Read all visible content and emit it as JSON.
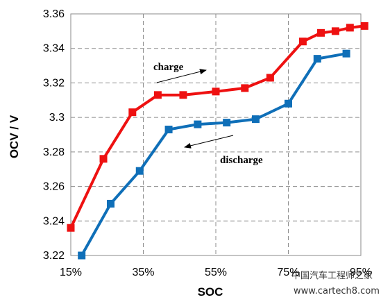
{
  "chart_data": {
    "type": "line",
    "xlabel": "SOC",
    "ylabel": "OCV / V",
    "xlim": [
      15,
      95
    ],
    "ylim": [
      3.22,
      3.36
    ],
    "x_ticks": [
      "15%",
      "35%",
      "55%",
      "75%",
      "95%"
    ],
    "x_tick_values": [
      15,
      35,
      55,
      75,
      95
    ],
    "y_ticks": [
      "3.22",
      "3.24",
      "3.26",
      "3.28",
      "3.3",
      "3.32",
      "3.34",
      "3.36"
    ],
    "y_tick_values": [
      3.22,
      3.24,
      3.26,
      3.28,
      3.3,
      3.32,
      3.34,
      3.36
    ],
    "grid": true,
    "series": [
      {
        "label": "charge",
        "color": "#ee1111",
        "marker": "square",
        "x": [
          15,
          24,
          32,
          39,
          46,
          55,
          63,
          70,
          79,
          84,
          88,
          92,
          96
        ],
        "y": [
          3.236,
          3.276,
          3.303,
          3.313,
          3.313,
          3.315,
          3.317,
          3.323,
          3.344,
          3.349,
          3.35,
          3.352,
          3.353
        ]
      },
      {
        "label": "discharge",
        "color": "#0f6fb8",
        "marker": "square",
        "x": [
          18,
          26,
          34,
          42,
          50,
          58,
          66,
          75,
          83,
          91
        ],
        "y": [
          3.22,
          3.25,
          3.269,
          3.293,
          3.296,
          3.297,
          3.299,
          3.308,
          3.334,
          3.337
        ]
      }
    ],
    "annotations": [
      {
        "text": "charge",
        "arrow": "right",
        "series": "charge"
      },
      {
        "text": "discharge",
        "arrow": "left",
        "series": "discharge"
      }
    ]
  },
  "watermark": {
    "text": "中国汽车工程师之家",
    "url": "www.cartech8.com"
  }
}
